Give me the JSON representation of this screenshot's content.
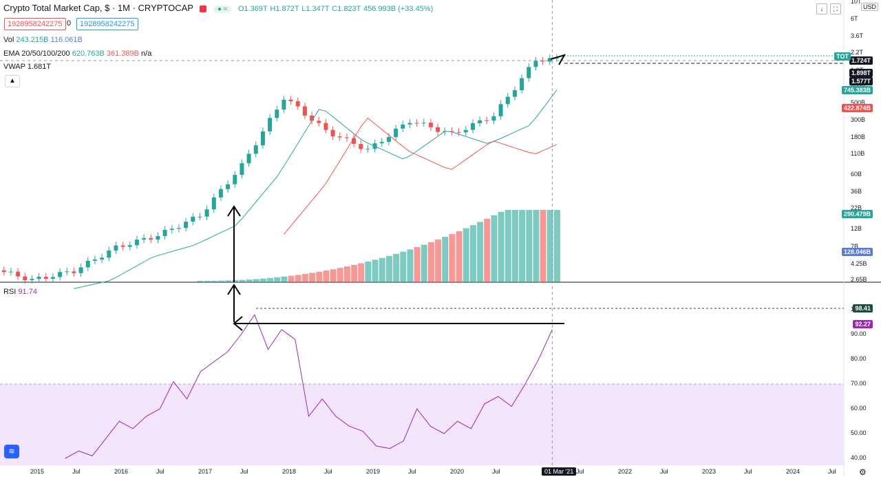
{
  "header": {
    "symbol": "Crypto Total Market Cap, $ · 1M · CRYPTOCAP",
    "status_badge": "● ≈",
    "ohlc": {
      "open": "O1.369T",
      "high": "H1.872T",
      "low": "L1.347T",
      "close": "C1.823T",
      "change": "456.993B (+33.45%)"
    }
  },
  "boxes": {
    "red": "1928958242275",
    "zero": "0",
    "blue": "1928958242275"
  },
  "indicators": {
    "vol_label": "Vol",
    "vol_a": "243.215B",
    "vol_b": "116.061B",
    "ema_label": "EMA 20/50/100/200",
    "ema_a": "620.763B",
    "ema_b": "361.389B",
    "ema_c": "n/a",
    "vwap_label": "VWAP",
    "vwap_v": "1.681T",
    "rsi_label": "RSI",
    "rsi_v": "91.74"
  },
  "collapse_icon": "chevron-up-icon",
  "price_axis": [
    "10T",
    "6T",
    "3.6T",
    "2.2T",
    "1.3T",
    "800B",
    "500B",
    "300B",
    "180B",
    "110B",
    "60B",
    "36B",
    "22B",
    "12B",
    "7B",
    "4.25B",
    "2.65B"
  ],
  "price_tags": [
    {
      "label": "1.724T",
      "color": "#131722"
    },
    {
      "label": "1.898T",
      "color": "#131722"
    },
    {
      "label": "1.577T",
      "color": "#131722"
    },
    {
      "label": "745.383B",
      "color": "#26a69a"
    },
    {
      "label": "422.874B",
      "color": "#ef5350"
    },
    {
      "label": "290.479B",
      "color": "#26a69a"
    },
    {
      "label": "128.046B",
      "color": "#5b7bd5"
    }
  ],
  "tot_tag": "TOT",
  "rsi_axis": [
    "100.00",
    "90.00",
    "80.00",
    "70.00",
    "60.00",
    "50.00",
    "40.00"
  ],
  "rsi_tags": [
    {
      "label": "98.41",
      "color": "#1e4d3a"
    },
    {
      "label": "92.27",
      "color": "#9c27b0"
    }
  ],
  "x_axis": [
    "2015",
    "Jul",
    "2016",
    "Jul",
    "2017",
    "Jul",
    "2018",
    "Jul",
    "2019",
    "Jul",
    "2020",
    "Jul",
    "2021",
    "Jul",
    "2022",
    "Jul",
    "2023",
    "Jul",
    "2024",
    "Jul"
  ],
  "current_date": "01 Mar '21",
  "usd": "USD",
  "toolbar_icons": [
    "arrow-down-icon",
    "fullscreen-icon"
  ],
  "colors": {
    "up": "#26a69a",
    "down": "#ef5350",
    "rsi": "#9c27b0",
    "rsi_band": "#f3e5fc",
    "ema_fast": "#26a69a",
    "ema_slow": "#ef5350"
  },
  "chart_data": [
    {
      "type": "candlestick",
      "title": "Crypto Total Market Cap, $ · 1M · CRYPTOCAP",
      "scale": "log",
      "x": [
        "2015",
        "Jul",
        "2016",
        "Jul",
        "2017",
        "Jul",
        "2018",
        "Jul",
        "2019",
        "Jul",
        "2020",
        "Jul",
        "2021"
      ],
      "close_approx_usd": [
        2650000000.0,
        3500000000.0,
        7000000000.0,
        10000000000.0,
        18000000000.0,
        80000000000.0,
        600000000000.0,
        220000000000.0,
        125000000000.0,
        300000000000.0,
        200000000000.0,
        350000000000.0,
        1823000000000.0
      ],
      "last": {
        "open": "1.369T",
        "high": "1.872T",
        "low": "1.347T",
        "close": "1.823T"
      }
    },
    {
      "type": "line",
      "title": "RSI",
      "ylim": [
        40,
        100
      ],
      "band": [
        30,
        70
      ],
      "values": [
        40,
        43,
        41,
        48,
        55,
        52,
        57,
        60,
        71,
        64,
        75,
        79,
        83,
        90,
        98,
        84,
        92,
        88,
        57,
        64,
        57,
        53,
        51,
        45,
        44,
        47,
        60,
        53,
        50,
        55,
        52,
        62,
        65,
        61,
        70,
        80,
        92
      ],
      "last": 91.74
    }
  ]
}
